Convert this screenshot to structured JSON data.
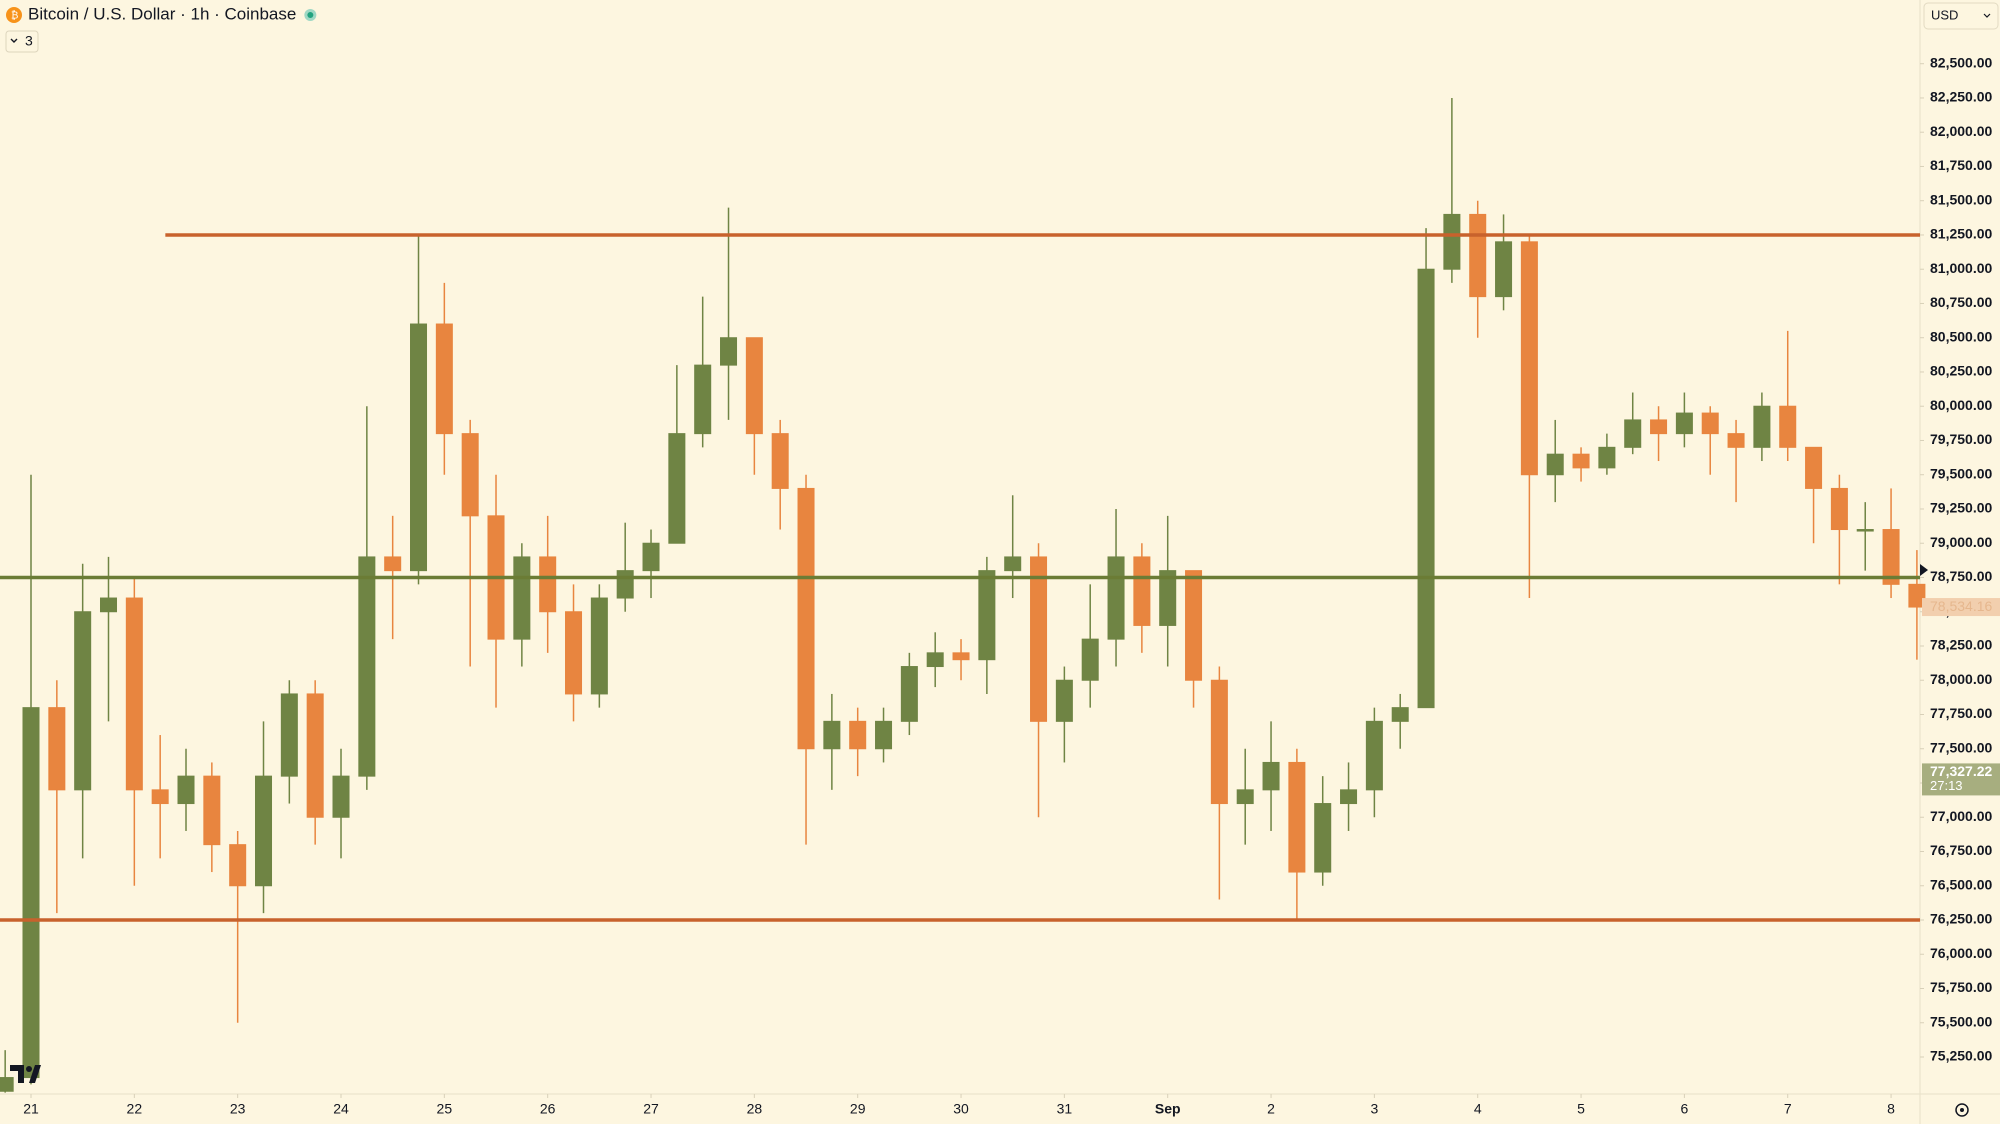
{
  "header": {
    "title": "Bitcoin / U.S. Dollar · 1h · Coinbase",
    "indicators": "3",
    "currency": "USD"
  },
  "chart_data": {
    "type": "candlestick",
    "x": [
      -0.25,
      0,
      0.25,
      0.5,
      0.75,
      1,
      1.25,
      1.5,
      1.75,
      2,
      2.25,
      2.5,
      2.75,
      3,
      3.25,
      3.5,
      3.75,
      4,
      4.25,
      4.5,
      4.75,
      5,
      5.25,
      5.5,
      5.75,
      6,
      6.25,
      6.5,
      6.75,
      7,
      7.25,
      7.5,
      7.75,
      8,
      8.25,
      8.5,
      8.75,
      9,
      9.25,
      9.5,
      9.75,
      10,
      10.25,
      10.5,
      10.75,
      11,
      11.25,
      11.5,
      11.75,
      12,
      12.25,
      12.5,
      12.75,
      13,
      13.25,
      13.5,
      13.75,
      14,
      14.25,
      14.5,
      14.75,
      15,
      15.25,
      15.5,
      15.75,
      16,
      16.25,
      16.5,
      16.75,
      17,
      17.25,
      17.5,
      17.75,
      18,
      18.25
    ],
    "open": [
      75000,
      75100,
      77800,
      77200,
      78500,
      78600,
      77200,
      77100,
      77300,
      76800,
      76500,
      77300,
      77900,
      77000,
      77300,
      78900,
      78800,
      80600,
      79800,
      79200,
      78300,
      78900,
      78500,
      77900,
      78600,
      78800,
      79000,
      79800,
      80300,
      80500,
      79800,
      79400,
      77500,
      77700,
      77500,
      77700,
      78100,
      78200,
      78150,
      78800,
      78900,
      77700,
      78000,
      78300,
      78900,
      78400,
      78800,
      78000,
      77100,
      77200,
      77400,
      76600,
      77100,
      77200,
      77700,
      77800,
      81000,
      81400,
      80800,
      81200,
      79500,
      79650,
      79550,
      79700,
      79900,
      79800,
      79950,
      79800,
      79700,
      80000,
      79700,
      79400,
      79100,
      79100,
      78700
    ],
    "high": [
      75300,
      79500,
      78000,
      78850,
      78900,
      78750,
      77600,
      77500,
      77400,
      76900,
      77700,
      78000,
      78000,
      77500,
      80000,
      79200,
      81250,
      80900,
      79900,
      79500,
      79000,
      79200,
      78700,
      78700,
      79150,
      79100,
      80300,
      80800,
      81450,
      80500,
      79900,
      79500,
      77900,
      77800,
      77800,
      78200,
      78350,
      78300,
      78900,
      79350,
      79000,
      78100,
      78700,
      79250,
      79000,
      79200,
      78800,
      78100,
      77500,
      77700,
      77500,
      77300,
      77400,
      77800,
      77900,
      81300,
      82250,
      81500,
      81400,
      81250,
      79900,
      79700,
      79800,
      80100,
      80000,
      80100,
      80000,
      79900,
      80100,
      80550,
      79700,
      79500,
      79300,
      79400,
      78950
    ],
    "low": [
      74990,
      75050,
      76300,
      76700,
      77700,
      76500,
      76700,
      76900,
      76600,
      75500,
      76300,
      77100,
      76800,
      76700,
      77200,
      78300,
      78700,
      79500,
      78100,
      77800,
      78100,
      78200,
      77700,
      77800,
      78500,
      78600,
      79000,
      79700,
      79900,
      79500,
      79100,
      76800,
      77200,
      77300,
      77400,
      77600,
      77950,
      78000,
      77900,
      78600,
      77000,
      77400,
      77800,
      78100,
      78200,
      78100,
      77800,
      76400,
      76800,
      76900,
      76250,
      76500,
      76900,
      77000,
      77500,
      77800,
      80900,
      80500,
      80700,
      78600,
      79300,
      79450,
      79500,
      79650,
      79600,
      79700,
      79500,
      79300,
      79600,
      79600,
      79000,
      78700,
      78800,
      78600,
      78150
    ],
    "close": [
      75100,
      77800,
      77200,
      78500,
      78600,
      77200,
      77100,
      77300,
      76800,
      76500,
      77300,
      77900,
      77000,
      77300,
      78900,
      78800,
      80600,
      79800,
      79200,
      78300,
      78900,
      78500,
      77900,
      78600,
      78800,
      79000,
      79800,
      80300,
      80500,
      79800,
      79400,
      77500,
      77700,
      77500,
      77700,
      78100,
      78200,
      78150,
      78800,
      78900,
      77700,
      78000,
      78300,
      78900,
      78400,
      78800,
      78000,
      77100,
      77200,
      77400,
      76600,
      77100,
      77200,
      77700,
      77800,
      81000,
      81400,
      80800,
      81200,
      79500,
      79650,
      79550,
      79700,
      79900,
      79800,
      79950,
      79800,
      79700,
      80000,
      79700,
      79400,
      79100,
      79100,
      78700,
      78534.16
    ],
    "up_color": "#6f8444",
    "down_color": "#e8853f",
    "xlim": [
      -0.3,
      18.28
    ],
    "ylim": [
      74980,
      82965
    ],
    "xticks": [
      {
        "value": 0,
        "label": "21"
      },
      {
        "value": 1,
        "label": "22"
      },
      {
        "value": 2,
        "label": "23"
      },
      {
        "value": 3,
        "label": "24"
      },
      {
        "value": 4,
        "label": "25"
      },
      {
        "value": 5,
        "label": "26"
      },
      {
        "value": 6,
        "label": "27"
      },
      {
        "value": 7,
        "label": "28"
      },
      {
        "value": 8,
        "label": "29"
      },
      {
        "value": 9,
        "label": "30"
      },
      {
        "value": 10,
        "label": "31"
      },
      {
        "value": 11,
        "label": "Sep"
      },
      {
        "value": 12,
        "label": "2"
      },
      {
        "value": 13,
        "label": "3"
      },
      {
        "value": 14,
        "label": "4"
      },
      {
        "value": 15,
        "label": "5"
      },
      {
        "value": 16,
        "label": "6"
      },
      {
        "value": 17,
        "label": "7"
      },
      {
        "value": 18,
        "label": "8"
      }
    ],
    "yticks": [
      {
        "value": 75250,
        "label": "75,250.00"
      },
      {
        "value": 75500,
        "label": "75,500.00"
      },
      {
        "value": 75750,
        "label": "75,750.00"
      },
      {
        "value": 76000,
        "label": "76,000.00"
      },
      {
        "value": 76250,
        "label": "76,250.00"
      },
      {
        "value": 76500,
        "label": "76,500.00"
      },
      {
        "value": 76750,
        "label": "76,750.00"
      },
      {
        "value": 77000,
        "label": "77,000.00"
      },
      {
        "value": 77250,
        "label": "77,250.00"
      },
      {
        "value": 77500,
        "label": "77,500.00"
      },
      {
        "value": 77750,
        "label": "77,750.00"
      },
      {
        "value": 78000,
        "label": "78,000.00"
      },
      {
        "value": 78250,
        "label": "78,250.00"
      },
      {
        "value": 78500,
        "label": "78,500.00"
      },
      {
        "value": 78750,
        "label": "78,750.00"
      },
      {
        "value": 79000,
        "label": "79,000.00"
      },
      {
        "value": 79250,
        "label": "79,250.00"
      },
      {
        "value": 79500,
        "label": "79,500.00"
      },
      {
        "value": 79750,
        "label": "79,750.00"
      },
      {
        "value": 80000,
        "label": "80,000.00"
      },
      {
        "value": 80250,
        "label": "80,250.00"
      },
      {
        "value": 80500,
        "label": "80,500.00"
      },
      {
        "value": 80750,
        "label": "80,750.00"
      },
      {
        "value": 81000,
        "label": "81,000.00"
      },
      {
        "value": 81250,
        "label": "81,250.00"
      },
      {
        "value": 81500,
        "label": "81,500.00"
      },
      {
        "value": 81750,
        "label": "81,750.00"
      },
      {
        "value": 82000,
        "label": "82,000.00"
      },
      {
        "value": 82250,
        "label": "82,250.00"
      },
      {
        "value": 82500,
        "label": "82,500.00"
      }
    ],
    "hlines": [
      {
        "value": 81250,
        "color": "#c8622c",
        "start": 1.3
      },
      {
        "value": 76250,
        "color": "#c8622c",
        "start": -0.3
      },
      {
        "value": 78750,
        "color": "#6b7c35",
        "start": -0.3
      }
    ],
    "price_labels": [
      {
        "value": 78534.16,
        "label": "78,534.16",
        "color": "#f2cfae"
      },
      {
        "value": 77327.22,
        "label": "77,327.22",
        "countdown": "27:13",
        "color": "#a7ae7f"
      }
    ]
  }
}
